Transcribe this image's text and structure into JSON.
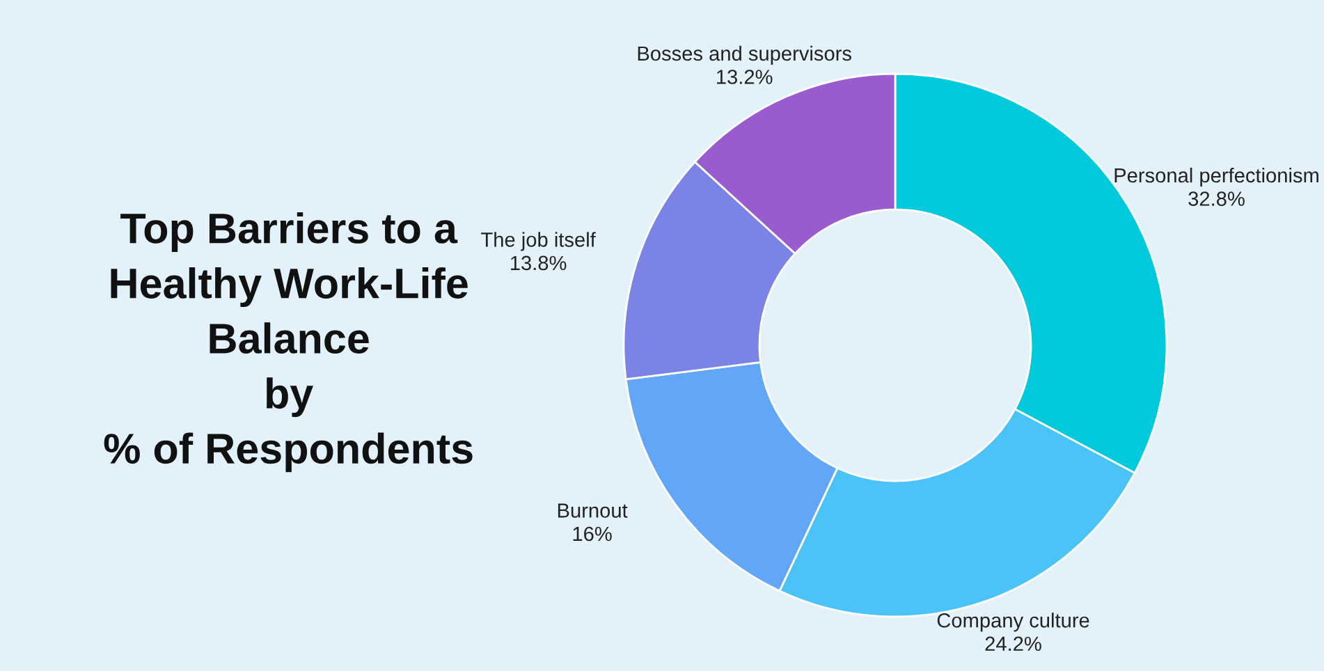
{
  "chart_data": {
    "type": "donut",
    "title": "Top Barriers to a\nHealthy Work-Life\nBalance\nby\n% of Respondents",
    "categories": [
      "Personal perfectionism",
      "Company culture",
      "Burnout",
      "The job itself",
      "Bosses and supervisors"
    ],
    "values": [
      32.8,
      24.2,
      16,
      13.8,
      13.2
    ],
    "value_labels": [
      "32.8%",
      "24.2%",
      "16%",
      "13.8%",
      "13.2%"
    ],
    "colors": [
      "#00c9db",
      "#4cc3f6",
      "#62a7f7",
      "#7b84e5",
      "#9a5bcf"
    ],
    "legend": false
  }
}
